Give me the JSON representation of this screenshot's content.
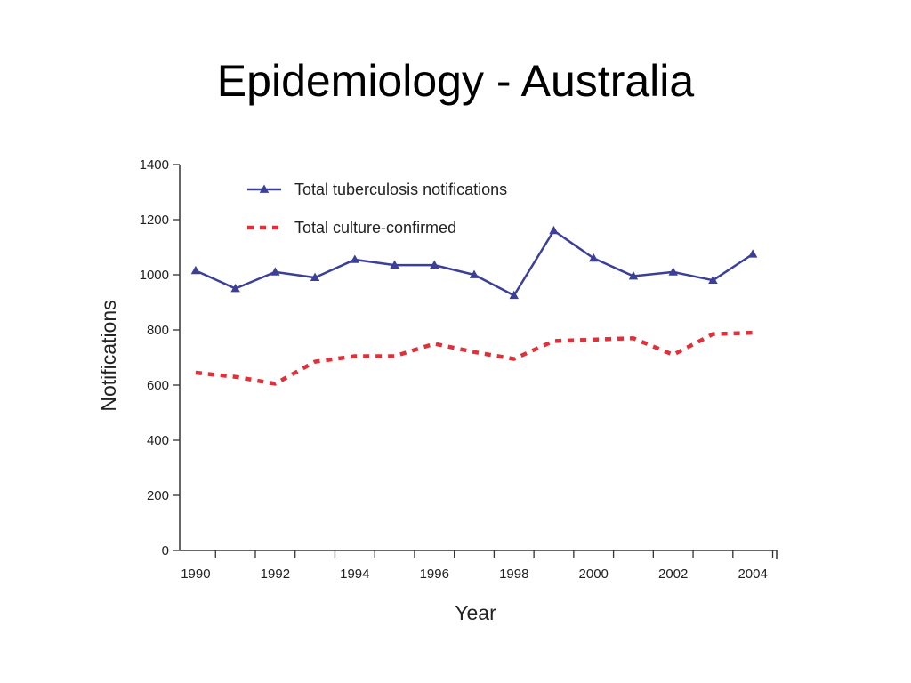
{
  "slide": {
    "title": "Epidemiology - Australia"
  },
  "chart_data": {
    "type": "line",
    "title": "",
    "xlabel": "Year",
    "ylabel": "Notifications",
    "x": [
      1990,
      1991,
      1992,
      1993,
      1994,
      1995,
      1996,
      1997,
      1998,
      1999,
      2000,
      2001,
      2002,
      2003,
      2004
    ],
    "xticks": [
      "1990",
      "1992",
      "1994",
      "1996",
      "1998",
      "2000",
      "2002",
      "2004"
    ],
    "xlim": [
      1989.6,
      2004.6
    ],
    "ylim": [
      0,
      1400
    ],
    "yticks": [
      "0",
      "200",
      "400",
      "600",
      "800",
      "1000",
      "1200",
      "1400"
    ],
    "grid": false,
    "legend_position": "top-left",
    "series": [
      {
        "name": "Total tuberculosis notifications",
        "color": "#3b3f98",
        "style": "solid",
        "marker": "triangle",
        "values": [
          1015,
          950,
          1010,
          990,
          1055,
          1035,
          1035,
          1000,
          925,
          1160,
          1060,
          995,
          1010,
          980,
          1075
        ]
      },
      {
        "name": "Total culture-confirmed",
        "color": "#e0303a",
        "style": "dashed",
        "marker": "none",
        "values": [
          645,
          630,
          605,
          685,
          705,
          705,
          750,
          720,
          695,
          760,
          765,
          770,
          710,
          785,
          790
        ]
      }
    ]
  }
}
